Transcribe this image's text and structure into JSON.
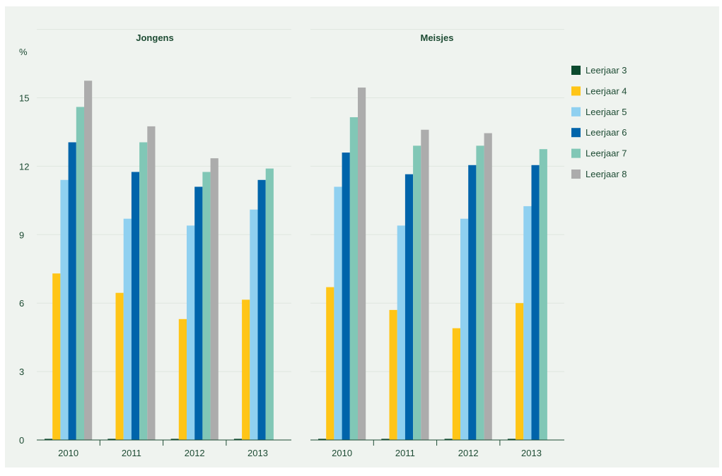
{
  "chart_data": {
    "type": "bar",
    "y_unit": "%",
    "ylim": [
      0,
      18
    ],
    "yticks": [
      0,
      3,
      6,
      9,
      12,
      15
    ],
    "grid": true,
    "legend_position": "right",
    "categories": [
      "2010",
      "2011",
      "2012",
      "2013"
    ],
    "series_styles": [
      {
        "name": "Leerjaar 3",
        "color": "#0b4a2e"
      },
      {
        "name": "Leerjaar 4",
        "color": "#ffc517"
      },
      {
        "name": "Leerjaar 5",
        "color": "#8fd0f0"
      },
      {
        "name": "Leerjaar 6",
        "color": "#0064aa"
      },
      {
        "name": "Leerjaar 7",
        "color": "#81c7b6"
      },
      {
        "name": "Leerjaar 8",
        "color": "#acacac"
      }
    ],
    "panels": [
      {
        "title": "Jongens",
        "series": [
          {
            "name": "Leerjaar 3",
            "values": [
              0.05,
              0.05,
              0.05,
              0.05
            ]
          },
          {
            "name": "Leerjaar 4",
            "values": [
              7.3,
              6.45,
              5.3,
              6.15
            ]
          },
          {
            "name": "Leerjaar 5",
            "values": [
              11.4,
              9.7,
              9.4,
              10.1
            ]
          },
          {
            "name": "Leerjaar 6",
            "values": [
              13.05,
              11.75,
              11.1,
              11.4
            ]
          },
          {
            "name": "Leerjaar 7",
            "values": [
              14.6,
              13.05,
              11.75,
              11.9
            ]
          },
          {
            "name": "Leerjaar 8",
            "values": [
              15.75,
              13.75,
              12.35,
              null
            ]
          }
        ]
      },
      {
        "title": "Meisjes",
        "series": [
          {
            "name": "Leerjaar 3",
            "values": [
              0.05,
              0.05,
              0.05,
              0.05
            ]
          },
          {
            "name": "Leerjaar 4",
            "values": [
              6.7,
              5.7,
              4.9,
              6.0
            ]
          },
          {
            "name": "Leerjaar 5",
            "values": [
              11.1,
              9.4,
              9.7,
              10.25
            ]
          },
          {
            "name": "Leerjaar 6",
            "values": [
              12.6,
              11.65,
              12.05,
              12.05
            ]
          },
          {
            "name": "Leerjaar 7",
            "values": [
              14.15,
              12.9,
              12.9,
              12.75
            ]
          },
          {
            "name": "Leerjaar 8",
            "values": [
              15.45,
              13.6,
              13.45,
              null
            ]
          }
        ]
      }
    ]
  }
}
